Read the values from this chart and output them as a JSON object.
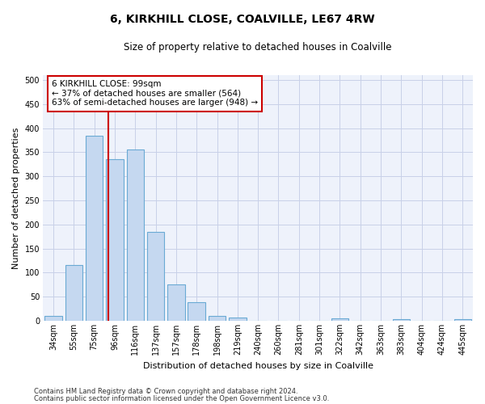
{
  "title": "6, KIRKHILL CLOSE, COALVILLE, LE67 4RW",
  "subtitle": "Size of property relative to detached houses in Coalville",
  "xlabel": "Distribution of detached houses by size in Coalville",
  "ylabel": "Number of detached properties",
  "categories": [
    "34sqm",
    "55sqm",
    "75sqm",
    "96sqm",
    "116sqm",
    "137sqm",
    "157sqm",
    "178sqm",
    "198sqm",
    "219sqm",
    "240sqm",
    "260sqm",
    "281sqm",
    "301sqm",
    "322sqm",
    "342sqm",
    "363sqm",
    "383sqm",
    "404sqm",
    "424sqm",
    "445sqm"
  ],
  "values": [
    10,
    115,
    385,
    335,
    355,
    185,
    75,
    38,
    10,
    6,
    0,
    0,
    0,
    0,
    5,
    0,
    0,
    4,
    0,
    0,
    4
  ],
  "bar_color": "#c5d8f0",
  "bar_edge_color": "#6aaad4",
  "vline_x_index": 3,
  "vline_color": "#cc0000",
  "annotation_line1": "6 KIRKHILL CLOSE: 99sqm",
  "annotation_line2": "← 37% of detached houses are smaller (564)",
  "annotation_line3": "63% of semi-detached houses are larger (948) →",
  "annotation_box_color": "#ffffff",
  "annotation_box_edge": "#cc0000",
  "ylim": [
    0,
    510
  ],
  "yticks": [
    0,
    50,
    100,
    150,
    200,
    250,
    300,
    350,
    400,
    450,
    500
  ],
  "footnote1": "Contains HM Land Registry data © Crown copyright and database right 2024.",
  "footnote2": "Contains public sector information licensed under the Open Government Licence v3.0.",
  "bg_color": "#eef2fb",
  "grid_color": "#c8d0e8",
  "title_fontsize": 10,
  "subtitle_fontsize": 8.5,
  "xlabel_fontsize": 8,
  "ylabel_fontsize": 8,
  "tick_fontsize": 7,
  "footnote_fontsize": 6
}
